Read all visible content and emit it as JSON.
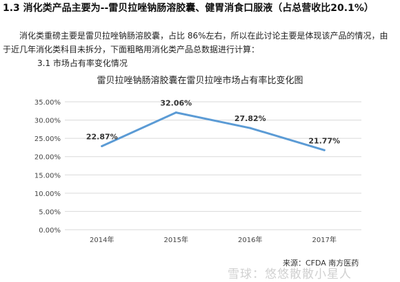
{
  "document": {
    "heading": "1.3 消化类产品主要为--雷贝拉唑钠肠溶胶囊、健胃消食口服液（占总营收比20.1%）",
    "paragraph": "消化类重磅主要是雷贝拉唑钠肠溶胶囊，占比 86%左右，所以在此讨论主要是体现该产品的情况，由于近几年消化类科目未拆分，下面粗略用消化类产品总数据进行计算：",
    "subheading": "3.1 市场占有率变化情况",
    "source": "来源：CFDA 南方医药",
    "watermark": "雪球：悠悠散散小星人"
  },
  "chart_data": {
    "type": "line",
    "title": "雷贝拉唑钠肠溶胶囊在雷贝拉唑市场占有率比变化图",
    "categories": [
      "2014年",
      "2015年",
      "2016年",
      "2017年"
    ],
    "series": [
      {
        "values": [
          22.87,
          32.06,
          27.82,
          21.77
        ],
        "labels": [
          "22.87%",
          "32.06%",
          "27.82%",
          "21.77%"
        ]
      }
    ],
    "ylim": [
      0,
      35
    ],
    "yticks": [
      "0.00%",
      "5.00%",
      "10.00%",
      "15.00%",
      "20.00%",
      "25.00%",
      "30.00%",
      "35.00%"
    ],
    "ytick_values": [
      0,
      5,
      10,
      15,
      20,
      25,
      30,
      35
    ],
    "grid": true,
    "line_color": "#5b9bd5",
    "grid_color": "#d9d9d9"
  }
}
